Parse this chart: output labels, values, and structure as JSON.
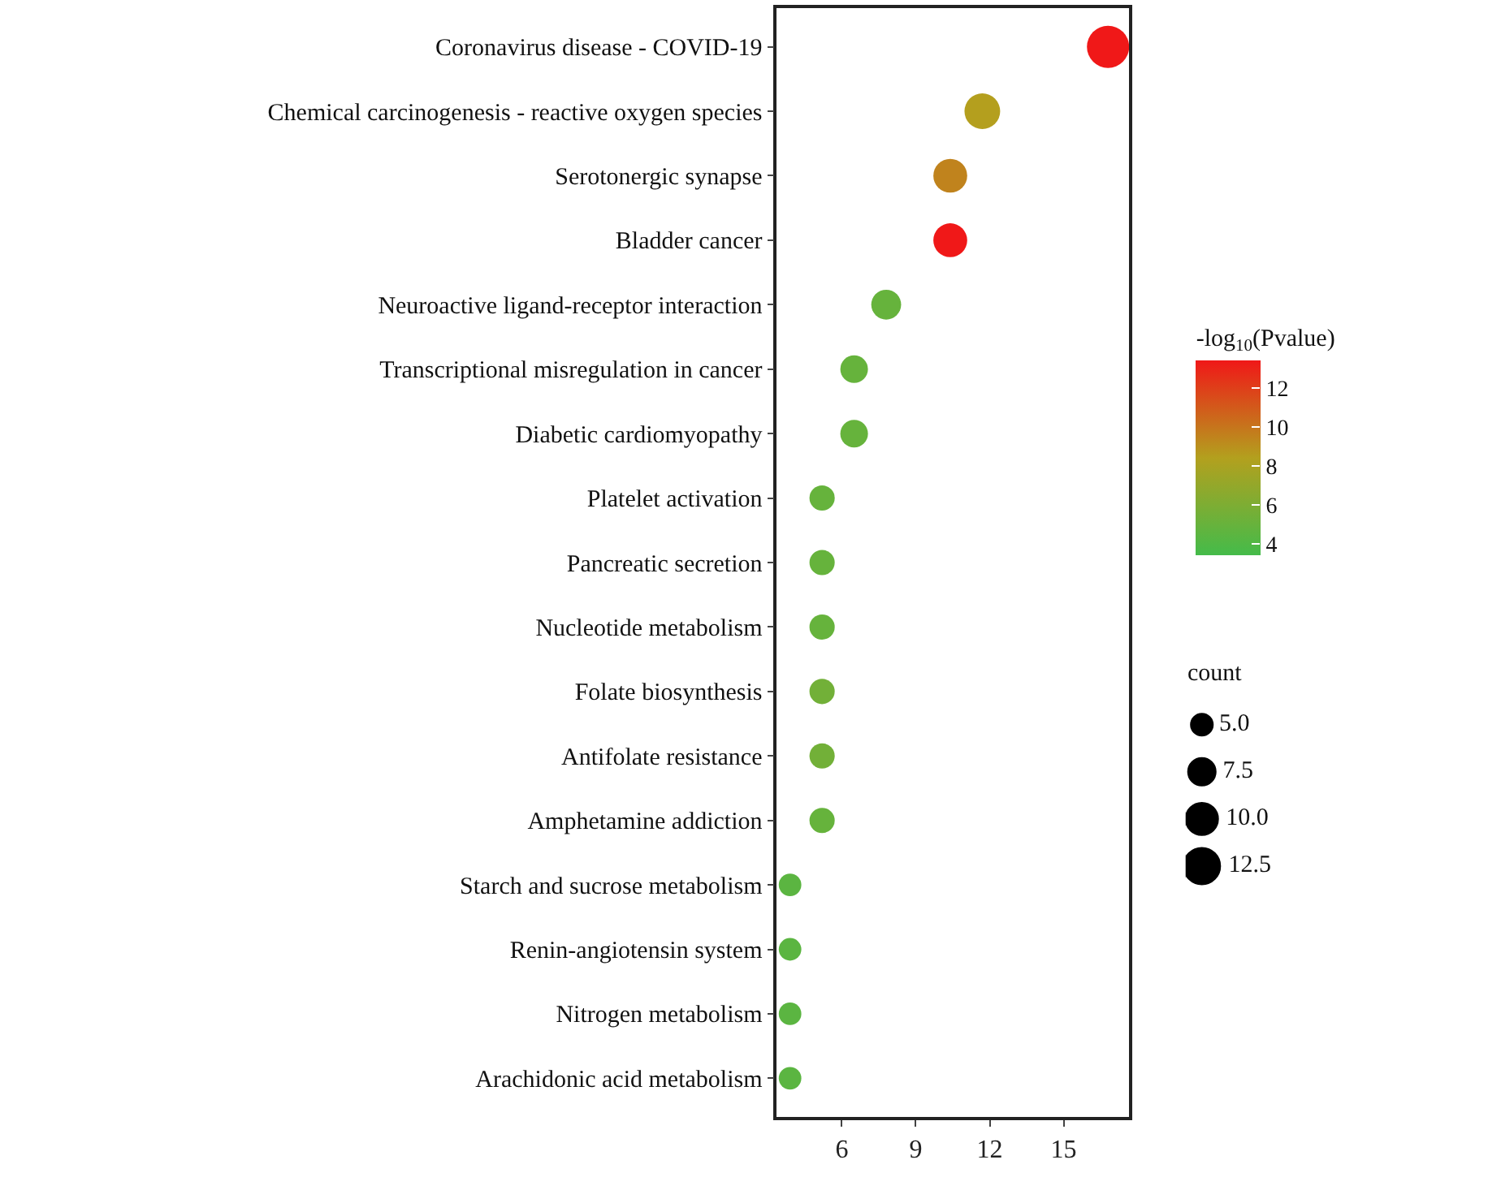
{
  "chart_data": {
    "type": "bubble",
    "orientation": "horizontal",
    "categories": [
      "Coronavirus disease - COVID-19",
      "Chemical carcinogenesis - reactive oxygen species",
      "Serotonergic synapse",
      "Bladder cancer",
      "Neuroactive ligand-receptor interaction",
      "Transcriptional misregulation in cancer",
      "Diabetic cardiomyopathy",
      "Platelet activation",
      "Pancreatic secretion",
      "Nucleotide metabolism",
      "Folate biosynthesis",
      "Antifolate resistance",
      "Amphetamine addiction",
      "Starch and sucrose metabolism",
      "Renin-angiotensin system",
      "Nitrogen metabolism",
      "Arachidonic acid metabolism"
    ],
    "values": [
      16.8,
      11.7,
      10.4,
      10.4,
      7.8,
      6.5,
      6.5,
      5.2,
      5.2,
      5.2,
      5.2,
      5.2,
      5.2,
      3.9,
      3.9,
      3.9,
      3.9
    ],
    "sizes": [
      14,
      10,
      9,
      9,
      7,
      6,
      6,
      5,
      5,
      5,
      5,
      5,
      5,
      4,
      4,
      4,
      4
    ],
    "cvalues": [
      13.5,
      8.5,
      9.5,
      13.5,
      5,
      5,
      5,
      5,
      5,
      5,
      5.5,
      5.5,
      5,
      4.5,
      4.5,
      4.5,
      4.5
    ],
    "xlim": [
      3.35,
      17.65
    ],
    "xticks": [
      6,
      9,
      12,
      15
    ],
    "clabel": "-log$_{10}$(Pvalue)",
    "clim": [
      3.45,
      13.45
    ],
    "cticks": [
      4,
      6,
      8,
      10,
      12
    ],
    "legend_title": "count",
    "size_legend": [
      {
        "value": 5,
        "label": "5.0"
      },
      {
        "value": 7.5,
        "label": "7.5"
      },
      {
        "value": 10,
        "label": "10.0"
      },
      {
        "value": 12.5,
        "label": "12.5"
      }
    ]
  }
}
